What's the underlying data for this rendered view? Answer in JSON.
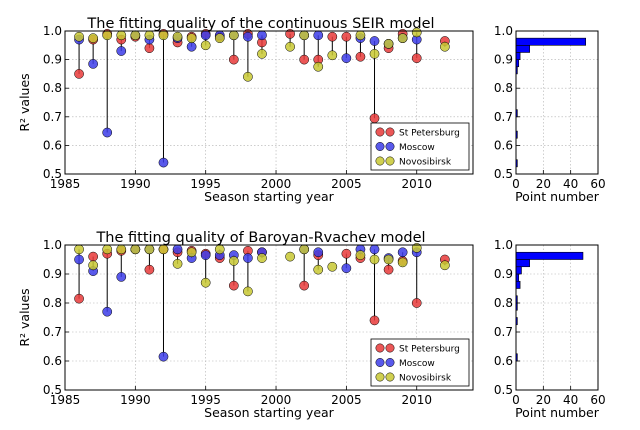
{
  "colors": {
    "St Petersburg": "#e83a3a",
    "Moscow": "#3c3ce8",
    "Novosibirsk": "#c8c832",
    "hist": "#0000ff"
  },
  "chart_data": [
    {
      "type": "scatter",
      "id": "seir",
      "title": "The fitting quality of the continuous SEIR model",
      "xlabel": "Season starting year",
      "ylabel": "R² values",
      "xlim": [
        1985,
        2014
      ],
      "ylim": [
        0.5,
        1.0
      ],
      "xticks": [
        1985,
        1990,
        1995,
        2000,
        2005,
        2010
      ],
      "yticks": [
        0.5,
        0.6,
        0.7,
        0.8,
        0.9,
        1.0
      ],
      "legend_position": "lower-right",
      "grid": true,
      "series": [
        {
          "name": "St Petersburg",
          "x": [
            1986,
            1987,
            1988,
            1989,
            1990,
            1991,
            1992,
            1993,
            1994,
            1995,
            1996,
            1997,
            1998,
            1999,
            2001,
            2002,
            2003,
            2004,
            2005,
            2006,
            2007,
            2008,
            2009,
            2010,
            2012
          ],
          "y": [
            0.85,
            0.97,
            0.99,
            0.97,
            0.98,
            0.94,
            0.99,
            0.96,
            0.98,
            0.99,
            0.98,
            0.9,
            0.99,
            0.96,
            0.99,
            0.9,
            0.9,
            0.98,
            0.98,
            0.91,
            0.695,
            0.94,
            0.99,
            0.905,
            0.965
          ]
        },
        {
          "name": "Moscow",
          "x": [
            1986,
            1987,
            1988,
            1989,
            1990,
            1991,
            1992,
            1993,
            1994,
            1995,
            1996,
            1997,
            1998,
            1999,
            2002,
            2003,
            2005,
            2006,
            2007,
            2008,
            2009,
            2010
          ],
          "y": [
            0.97,
            0.885,
            0.645,
            0.93,
            0.985,
            0.97,
            0.54,
            0.975,
            0.945,
            0.985,
            0.985,
            0.985,
            0.98,
            0.985,
            0.985,
            0.985,
            0.905,
            0.975,
            0.965,
            0.955,
            0.975,
            0.97
          ]
        },
        {
          "name": "Novosibirsk",
          "x": [
            1986,
            1987,
            1988,
            1989,
            1990,
            1991,
            1992,
            1993,
            1994,
            1995,
            1996,
            1997,
            1998,
            1999,
            2001,
            2002,
            2003,
            2004,
            2006,
            2007,
            2008,
            2009,
            2010,
            2012
          ],
          "y": [
            0.98,
            0.975,
            0.985,
            0.985,
            0.985,
            0.985,
            0.985,
            0.98,
            0.975,
            0.95,
            0.975,
            0.985,
            0.84,
            0.92,
            0.945,
            0.985,
            0.875,
            0.915,
            0.985,
            0.92,
            0.955,
            0.975,
            0.995,
            0.945
          ]
        }
      ]
    },
    {
      "type": "bar",
      "id": "seir-hist",
      "orientation": "horizontal",
      "xlabel": "Point number",
      "xlim": [
        0,
        60
      ],
      "ylim": [
        0.5,
        1.0
      ],
      "xticks": [
        0,
        20,
        40,
        60
      ],
      "yticks": [
        0.5,
        0.6,
        0.7,
        0.8,
        0.9,
        1.0
      ],
      "bins": [
        0.5,
        0.525,
        0.55,
        0.575,
        0.6,
        0.625,
        0.65,
        0.675,
        0.7,
        0.725,
        0.75,
        0.775,
        0.8,
        0.825,
        0.85,
        0.875,
        0.9,
        0.925,
        0.95,
        0.975,
        1.0
      ],
      "counts": [
        0,
        1,
        0,
        0,
        0,
        1,
        0,
        0,
        1,
        0,
        0,
        0,
        0,
        0,
        1,
        2,
        3,
        10,
        51,
        0
      ]
    },
    {
      "type": "scatter",
      "id": "baroyan",
      "title": "The fitting quality of Baroyan-Rvachev model",
      "xlabel": "Season starting year",
      "ylabel": "R² values",
      "xlim": [
        1985,
        2014
      ],
      "ylim": [
        0.5,
        1.0
      ],
      "xticks": [
        1985,
        1990,
        1995,
        2000,
        2005,
        2010
      ],
      "yticks": [
        0.5,
        0.6,
        0.7,
        0.8,
        0.9,
        1.0
      ],
      "legend_position": "lower-right",
      "grid": true,
      "series": [
        {
          "name": "St Petersburg",
          "x": [
            1986,
            1987,
            1988,
            1989,
            1990,
            1991,
            1992,
            1993,
            1994,
            1995,
            1996,
            1997,
            1998,
            1999,
            2002,
            2003,
            2005,
            2006,
            2007,
            2008,
            2009,
            2010,
            2012
          ],
          "y": [
            0.815,
            0.96,
            0.97,
            0.98,
            0.985,
            0.915,
            0.985,
            0.975,
            0.98,
            0.97,
            0.955,
            0.86,
            0.98,
            0.975,
            0.86,
            0.965,
            0.97,
            0.955,
            0.74,
            0.915,
            0.945,
            0.8,
            0.95
          ]
        },
        {
          "name": "Moscow",
          "x": [
            1986,
            1987,
            1988,
            1989,
            1990,
            1991,
            1992,
            1993,
            1994,
            1995,
            1996,
            1997,
            1998,
            1999,
            2002,
            2003,
            2005,
            2006,
            2007,
            2008,
            2009,
            2010
          ],
          "y": [
            0.95,
            0.91,
            0.77,
            0.89,
            0.985,
            0.985,
            0.615,
            0.985,
            0.955,
            0.965,
            0.965,
            0.965,
            0.955,
            0.975,
            0.985,
            0.975,
            0.92,
            0.985,
            0.985,
            0.955,
            0.975,
            0.975
          ]
        },
        {
          "name": "Novosibirsk",
          "x": [
            1986,
            1987,
            1988,
            1989,
            1990,
            1991,
            1992,
            1993,
            1994,
            1995,
            1996,
            1997,
            1998,
            1999,
            2001,
            2002,
            2003,
            2004,
            2006,
            2007,
            2008,
            2009,
            2010,
            2012
          ],
          "y": [
            0.985,
            0.93,
            0.985,
            0.985,
            0.985,
            0.985,
            0.985,
            0.935,
            0.975,
            0.87,
            0.985,
            0.945,
            0.84,
            0.955,
            0.96,
            0.985,
            0.915,
            0.925,
            0.965,
            0.95,
            0.95,
            0.94,
            0.99,
            0.93
          ]
        }
      ]
    },
    {
      "type": "bar",
      "id": "baroyan-hist",
      "orientation": "horizontal",
      "xlabel": "Point number",
      "xlim": [
        0,
        60
      ],
      "ylim": [
        0.5,
        1.0
      ],
      "xticks": [
        0,
        20,
        40,
        60
      ],
      "yticks": [
        0.5,
        0.6,
        0.7,
        0.8,
        0.9,
        1.0
      ],
      "bins": [
        0.5,
        0.525,
        0.55,
        0.575,
        0.6,
        0.625,
        0.65,
        0.675,
        0.7,
        0.725,
        0.75,
        0.775,
        0.8,
        0.825,
        0.85,
        0.875,
        0.9,
        0.925,
        0.95,
        0.975,
        1.0
      ],
      "counts": [
        0,
        0,
        0,
        0,
        1,
        0,
        0,
        0,
        0,
        1,
        0,
        1,
        1,
        0,
        3,
        2,
        4,
        10,
        49,
        0
      ]
    }
  ]
}
